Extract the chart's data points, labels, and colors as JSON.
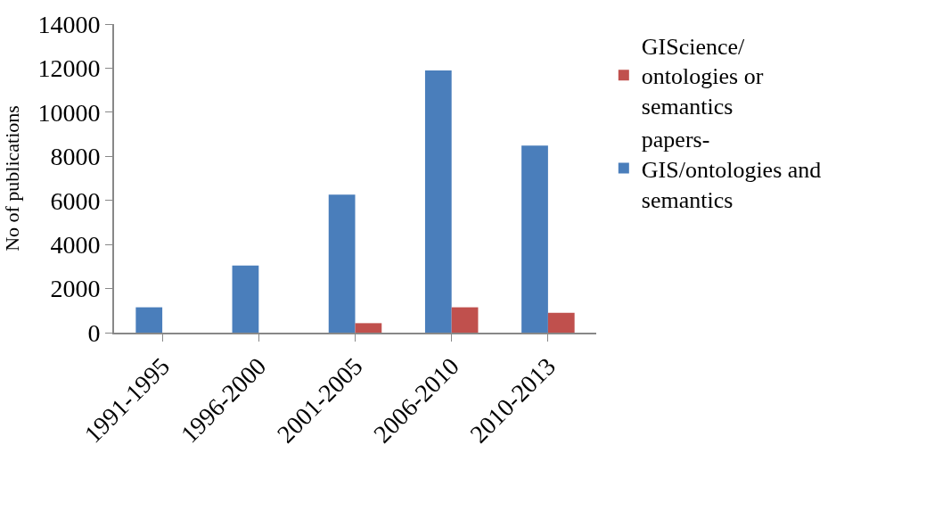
{
  "chart_data": {
    "type": "bar",
    "ylabel": "No of publications",
    "categories": [
      "1991-1995",
      "1996-2000",
      "2001-2005",
      "2006-2010",
      "2010-2013"
    ],
    "series": [
      {
        "name": "papers-GIS/ontologies and semantics",
        "color": "#4a7ebb",
        "values": [
          1150,
          3040,
          6260,
          11900,
          8490
        ]
      },
      {
        "name": "GIScience/ ontologies or semantics",
        "color": "#c0504d",
        "values": [
          null,
          null,
          430,
          1150,
          900
        ]
      }
    ],
    "ylim": [
      0,
      14000
    ],
    "yticks": [
      0,
      2000,
      4000,
      6000,
      8000,
      10000,
      12000,
      14000
    ],
    "legend": "right"
  }
}
